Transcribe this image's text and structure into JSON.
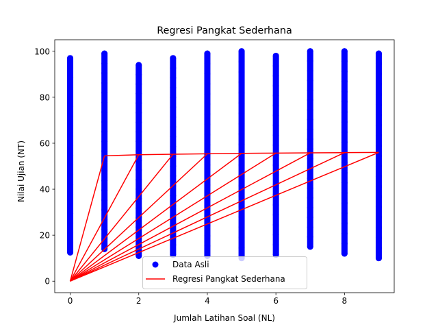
{
  "chart_data": {
    "type": "scatter",
    "title": "Regresi Pangkat Sederhana",
    "xlabel": "Jumlah Latihan Soal (NL)",
    "ylabel": "Nilai Ujian (NT)",
    "xlim": [
      -0.45,
      9.45
    ],
    "ylim": [
      -5,
      105
    ],
    "xticks": [
      0,
      2,
      4,
      6,
      8
    ],
    "yticks": [
      0,
      20,
      40,
      60,
      80,
      100
    ],
    "grid": false,
    "legend_position": "lower-center",
    "series": [
      {
        "name": "Data Asli",
        "kind": "scatter",
        "color": "#0000ff",
        "columns": [
          {
            "x": 0,
            "min": 12.5,
            "max": 97
          },
          {
            "x": 1,
            "min": 14,
            "max": 99
          },
          {
            "x": 2,
            "min": 11,
            "max": 94
          },
          {
            "x": 3,
            "min": 11.5,
            "max": 97
          },
          {
            "x": 4,
            "min": 11,
            "max": 99
          },
          {
            "x": 5,
            "min": 10,
            "max": 100
          },
          {
            "x": 6,
            "min": 11.5,
            "max": 98
          },
          {
            "x": 7,
            "min": 15,
            "max": 100
          },
          {
            "x": 8,
            "min": 12,
            "max": 100
          },
          {
            "x": 9,
            "min": 10,
            "max": 99
          }
        ]
      },
      {
        "name": "Regresi Pangkat Sederhana",
        "kind": "line",
        "color": "#ff0000",
        "origin": [
          0,
          0
        ],
        "points": [
          {
            "x": 1,
            "y": 54.5
          },
          {
            "x": 2,
            "y": 55.0
          },
          {
            "x": 3,
            "y": 55.2
          },
          {
            "x": 4,
            "y": 55.4
          },
          {
            "x": 5,
            "y": 55.6
          },
          {
            "x": 6,
            "y": 55.7
          },
          {
            "x": 7,
            "y": 55.8
          },
          {
            "x": 8,
            "y": 55.9
          },
          {
            "x": 9,
            "y": 56.0
          }
        ]
      }
    ]
  }
}
